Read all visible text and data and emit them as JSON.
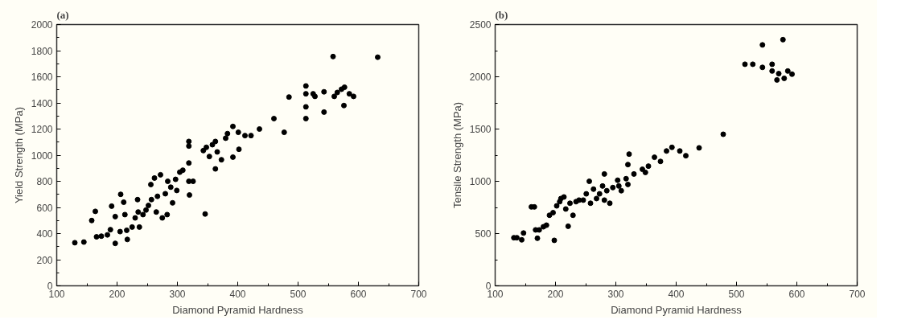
{
  "chart_data": [
    {
      "type": "scatter",
      "title": "(a)",
      "xlabel": "Diamond Pyramid Hardness",
      "ylabel": "Yield Strength (MPa)",
      "marker": "circle",
      "xlim": [
        100,
        700
      ],
      "ylim": [
        0,
        2000
      ],
      "xticks": [
        100,
        {
          "value": 150,
          "label": null
        },
        200,
        {
          "value": 250,
          "label": null
        },
        300,
        {
          "value": 350,
          "label": null
        },
        400,
        {
          "value": 450,
          "label": null
        },
        500,
        {
          "value": 550,
          "label": null
        },
        600,
        {
          "value": 650,
          "label": null
        },
        700
      ],
      "yticks": [
        0,
        {
          "value": 100,
          "label": null
        },
        200,
        {
          "value": 300,
          "label": null
        },
        400,
        {
          "value": 500,
          "label": null
        },
        600,
        {
          "value": 700,
          "label": null
        },
        800,
        {
          "value": 900,
          "label": null
        },
        1000,
        {
          "value": 1100,
          "label": null
        },
        1200,
        {
          "value": 1300,
          "label": null
        },
        1400,
        {
          "value": 1500,
          "label": null
        },
        1600,
        {
          "value": 1700,
          "label": null
        },
        1800,
        {
          "value": 1900,
          "label": null
        },
        2000
      ],
      "series": [
        {
          "color": "#000000",
          "x": [
            130,
            145,
            158,
            164,
            166,
            174,
            184,
            189,
            191,
            197,
            197,
            205,
            206,
            211,
            213,
            217,
            216,
            225,
            230,
            234,
            235,
            237,
            243,
            248,
            252,
            257,
            256,
            262,
            265,
            267,
            272,
            275,
            280,
            283,
            284,
            289,
            292,
            297,
            299,
            304,
            309,
            319,
            320,
            319,
            326,
            319,
            319,
            346,
            343,
            348,
            353,
            358,
            363,
            363,
            366,
            373,
            380,
            383,
            392,
            392,
            401,
            402,
            412,
            422,
            436,
            460,
            477,
            485,
            513,
            513,
            513,
            513,
            525,
            528,
            543,
            543,
            558,
            560,
            565,
            572,
            577,
            576,
            585,
            592,
            632
          ],
          "values": [
            330,
            335,
            500,
            570,
            375,
            380,
            390,
            430,
            610,
            530,
            325,
            415,
            700,
            640,
            545,
            355,
            425,
            450,
            520,
            660,
            565,
            450,
            545,
            580,
            615,
            660,
            775,
            825,
            565,
            685,
            850,
            520,
            705,
            545,
            800,
            755,
            635,
            815,
            730,
            870,
            885,
            800,
            695,
            940,
            800,
            1105,
            1070,
            550,
            1035,
            1060,
            990,
            1080,
            1105,
            895,
            1025,
            965,
            1130,
            1165,
            1220,
            985,
            1175,
            1045,
            1150,
            1150,
            1200,
            1280,
            1175,
            1445,
            1530,
            1470,
            1370,
            1280,
            1470,
            1450,
            1485,
            1330,
            1755,
            1450,
            1480,
            1505,
            1520,
            1380,
            1470,
            1450,
            1750
          ]
        }
      ]
    },
    {
      "type": "scatter",
      "title": "(b)",
      "xlabel": "Diamond Pyramid Hardness",
      "ylabel": "Tensile Strength (MPa)",
      "marker": "circle",
      "xlim": [
        100,
        700
      ],
      "ylim": [
        0,
        2500
      ],
      "xticks": [
        100,
        {
          "value": 150,
          "label": null
        },
        200,
        {
          "value": 250,
          "label": null
        },
        300,
        {
          "value": 350,
          "label": null
        },
        400,
        {
          "value": 450,
          "label": null
        },
        500,
        {
          "value": 550,
          "label": null
        },
        600,
        {
          "value": 650,
          "label": null
        },
        700
      ],
      "yticks": [
        0,
        {
          "value": 250,
          "label": null
        },
        500,
        {
          "value": 750,
          "label": null
        },
        1000,
        {
          "value": 1250,
          "label": null
        },
        1500,
        {
          "value": 1750,
          "label": null
        },
        2000,
        {
          "value": 2250,
          "label": null
        },
        2500
      ],
      "series": [
        {
          "color": "#000000",
          "x": [
            131,
            136,
            144,
            147,
            160,
            165,
            167,
            170,
            173,
            180,
            185,
            190,
            196,
            198,
            202,
            207,
            209,
            214,
            217,
            221,
            224,
            229,
            234,
            239,
            246,
            251,
            256,
            258,
            263,
            268,
            273,
            278,
            281,
            281,
            285,
            290,
            295,
            303,
            305,
            309,
            317,
            320,
            320,
            322,
            330,
            344,
            349,
            354,
            364,
            374,
            384,
            393,
            406,
            416,
            438,
            478,
            514,
            527,
            543,
            543,
            559,
            559,
            567,
            570,
            577,
            579,
            585,
            592
          ],
          "values": [
            460,
            460,
            440,
            505,
            755,
            755,
            535,
            455,
            535,
            565,
            580,
            675,
            700,
            435,
            765,
            805,
            835,
            850,
            735,
            570,
            790,
            675,
            805,
            820,
            820,
            880,
            1000,
            790,
            925,
            835,
            880,
            955,
            1070,
            820,
            910,
            790,
            940,
            1010,
            955,
            910,
            1025,
            970,
            1160,
            1260,
            1070,
            1115,
            1085,
            1145,
            1230,
            1190,
            1290,
            1325,
            1290,
            1245,
            1320,
            1450,
            2120,
            2120,
            2305,
            2090,
            2120,
            2055,
            1970,
            2030,
            2355,
            1985,
            2055,
            2025
          ]
        }
      ]
    }
  ]
}
